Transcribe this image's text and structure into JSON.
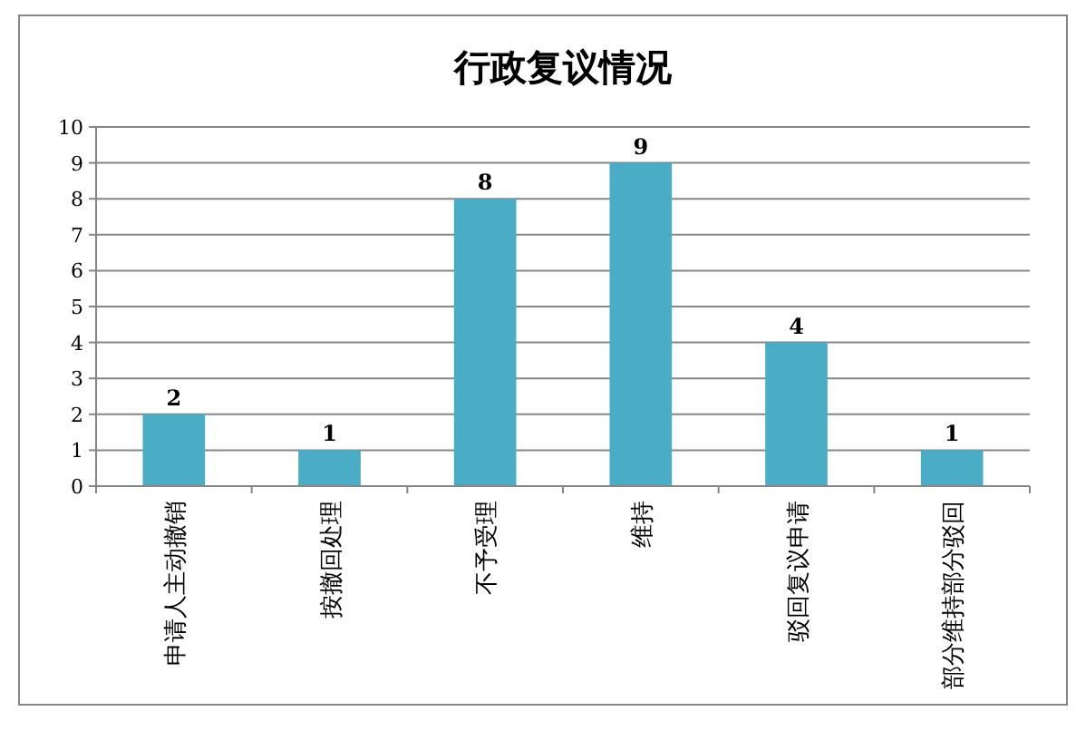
{
  "chart_data": {
    "type": "bar",
    "title": "行政复议情况",
    "categories": [
      "申请人主动撤销",
      "按撤回处理",
      "不予受理",
      "维持",
      "驳回复议申请",
      "部分维持部分驳回"
    ],
    "values": [
      2,
      1,
      8,
      9,
      4,
      1
    ],
    "color": "#4bacc6",
    "ylim": [
      0,
      10
    ],
    "yticks": [
      0,
      1,
      2,
      3,
      4,
      5,
      6,
      7,
      8,
      9,
      10
    ],
    "grid": "y",
    "data_labels": true
  }
}
